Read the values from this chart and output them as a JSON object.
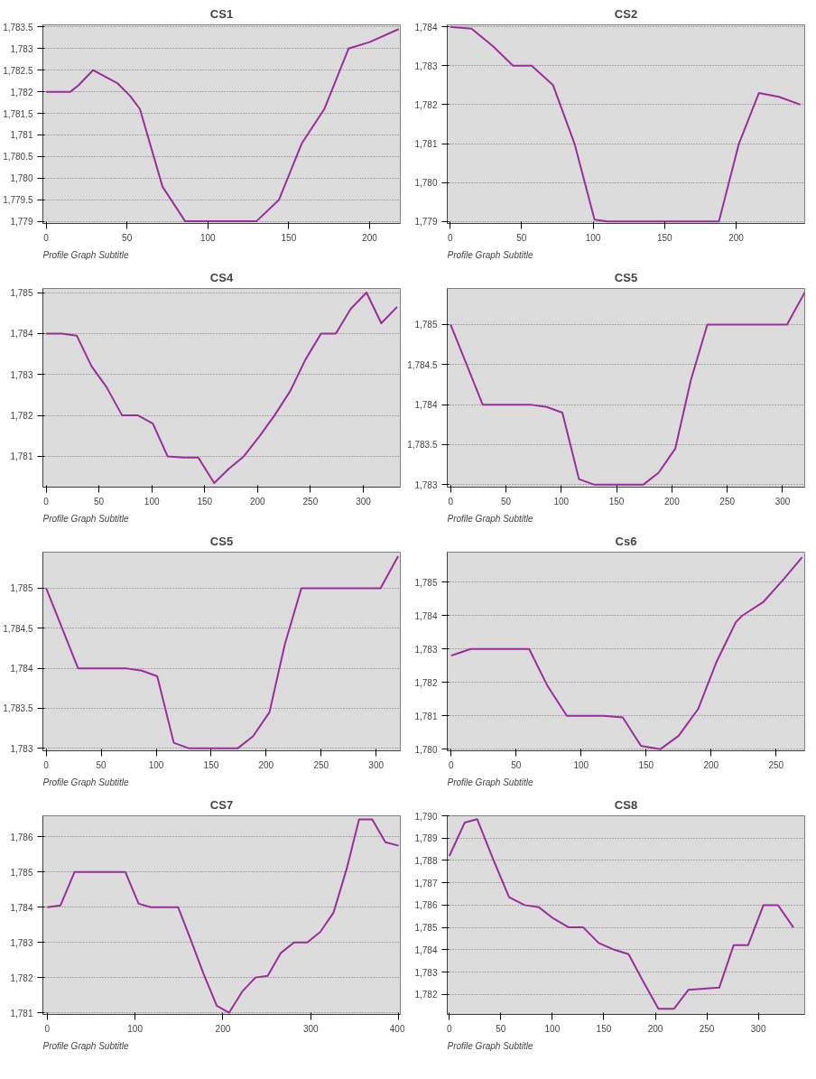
{
  "chart_data": [
    {
      "type": "line",
      "title": "CS1",
      "subtitle": "Profile Graph Subtitle",
      "grid": "y",
      "marker": "none",
      "line_style": "solid",
      "x": [
        0,
        15,
        20,
        29,
        44,
        52,
        58,
        72,
        86,
        130,
        144,
        158,
        172,
        187,
        200,
        218
      ],
      "series": [
        {
          "color": "#9a2e9a",
          "values": [
            1782,
            1782,
            1782.15,
            1782.5,
            1782.2,
            1781.9,
            1781.6,
            1779.8,
            1779,
            1779,
            1779.5,
            1780.8,
            1781.6,
            1783,
            1783.15,
            1783.45
          ]
        }
      ],
      "xlim": [
        -2,
        219
      ],
      "ylim": [
        1778.95,
        1783.55
      ],
      "xticks": [
        0,
        50,
        100,
        150,
        200
      ],
      "yticks": [
        {
          "value": 1779,
          "label": "1,779"
        },
        {
          "value": 1779.5,
          "label": "1,779.5"
        },
        {
          "value": 1780,
          "label": "1,780"
        },
        {
          "value": 1780.5,
          "label": "1,780.5"
        },
        {
          "value": 1781,
          "label": "1,781"
        },
        {
          "value": 1781.5,
          "label": "1,781.5"
        },
        {
          "value": 1782,
          "label": "1,782"
        },
        {
          "value": 1782.5,
          "label": "1,782.5"
        },
        {
          "value": 1783,
          "label": "1,783"
        },
        {
          "value": 1783.5,
          "label": "1,783.5"
        }
      ]
    },
    {
      "type": "line",
      "title": "CS2",
      "subtitle": "Profile Graph Subtitle",
      "grid": "y",
      "marker": "none",
      "line_style": "solid",
      "x": [
        0,
        15,
        30,
        44,
        57,
        72,
        87,
        101,
        110,
        188,
        202,
        216,
        230,
        245
      ],
      "series": [
        {
          "color": "#9a2e9a",
          "values": [
            1784,
            1783.95,
            1783.5,
            1783,
            1783,
            1782.5,
            1781,
            1779.05,
            1779,
            1779,
            1781,
            1782.3,
            1782.2,
            1782
          ]
        }
      ],
      "xlim": [
        -2,
        248
      ],
      "ylim": [
        1778.95,
        1784.05
      ],
      "xticks": [
        0,
        50,
        100,
        150,
        200
      ],
      "yticks": [
        {
          "value": 1779,
          "label": "1,779"
        },
        {
          "value": 1780,
          "label": "1,780"
        },
        {
          "value": 1781,
          "label": "1,781"
        },
        {
          "value": 1782,
          "label": "1,782"
        },
        {
          "value": 1783,
          "label": "1,783"
        },
        {
          "value": 1784,
          "label": "1,784"
        }
      ]
    },
    {
      "type": "line",
      "title": "CS4",
      "subtitle": "Profile Graph Subtitle",
      "grid": "y",
      "marker": "none",
      "line_style": "solid",
      "x": [
        0,
        15,
        29,
        43,
        57,
        72,
        87,
        101,
        115,
        130,
        144,
        159,
        173,
        187,
        202,
        216,
        231,
        245,
        260,
        274,
        288,
        303,
        317,
        332
      ],
      "series": [
        {
          "color": "#9a2e9a",
          "values": [
            1784,
            1784,
            1783.95,
            1783.2,
            1782.7,
            1782,
            1782,
            1781.8,
            1781,
            1780.97,
            1780.97,
            1780.35,
            1780.7,
            1781,
            1781.5,
            1782,
            1782.6,
            1783.35,
            1784,
            1784,
            1784.6,
            1785,
            1784.25,
            1784.65
          ]
        }
      ],
      "xlim": [
        -3,
        335
      ],
      "ylim": [
        1780.25,
        1785.1
      ],
      "xticks": [
        0,
        50,
        100,
        150,
        200,
        250,
        300
      ],
      "yticks": [
        {
          "value": 1781,
          "label": "1,781"
        },
        {
          "value": 1782,
          "label": "1,782"
        },
        {
          "value": 1783,
          "label": "1,783"
        },
        {
          "value": 1784,
          "label": "1,784"
        },
        {
          "value": 1785,
          "label": "1,785"
        }
      ]
    },
    {
      "type": "line",
      "title": "CS5",
      "subtitle": "Profile Graph Subtitle",
      "grid": "y",
      "marker": "none",
      "line_style": "solid",
      "x": [
        0,
        29,
        72,
        87,
        101,
        116,
        130,
        174,
        188,
        203,
        217,
        232,
        304,
        320
      ],
      "series": [
        {
          "color": "#9a2e9a",
          "values": [
            1785,
            1784,
            1784,
            1783.97,
            1783.9,
            1783.07,
            1783,
            1783,
            1783.15,
            1783.45,
            1784.3,
            1785,
            1785,
            1785.4
          ]
        }
      ],
      "xlim": [
        -3,
        320
      ],
      "ylim": [
        1782.97,
        1785.45
      ],
      "xticks": [
        0,
        50,
        100,
        150,
        200,
        250,
        300
      ],
      "yticks": [
        {
          "value": 1783,
          "label": "1,783"
        },
        {
          "value": 1783.5,
          "label": "1,783.5"
        },
        {
          "value": 1784,
          "label": "1,784"
        },
        {
          "value": 1784.5,
          "label": "1,784.5"
        },
        {
          "value": 1785,
          "label": "1,785"
        }
      ]
    },
    {
      "type": "line",
      "title": "CS5",
      "subtitle": "Profile Graph Subtitle",
      "grid": "y",
      "marker": "none",
      "line_style": "solid",
      "x": [
        0,
        29,
        72,
        87,
        101,
        116,
        130,
        174,
        188,
        203,
        217,
        232,
        304,
        320
      ],
      "series": [
        {
          "color": "#9a2e9a",
          "values": [
            1785,
            1784,
            1784,
            1783.97,
            1783.9,
            1783.07,
            1783,
            1783,
            1783.15,
            1783.45,
            1784.3,
            1785,
            1785,
            1785.4
          ]
        }
      ],
      "xlim": [
        -3,
        322
      ],
      "ylim": [
        1782.97,
        1785.45
      ],
      "xticks": [
        0,
        50,
        100,
        150,
        200,
        250,
        300
      ],
      "yticks": [
        {
          "value": 1783,
          "label": "1,783"
        },
        {
          "value": 1783.5,
          "label": "1,783.5"
        },
        {
          "value": 1784,
          "label": "1,784"
        },
        {
          "value": 1784.5,
          "label": "1,784.5"
        },
        {
          "value": 1785,
          "label": "1,785"
        }
      ]
    },
    {
      "type": "line",
      "title": "Cs6",
      "subtitle": "Profile Graph Subtitle",
      "grid": "y",
      "marker": "none",
      "line_style": "solid",
      "x": [
        0,
        15,
        60,
        74,
        89,
        117,
        132,
        146,
        161,
        175,
        190,
        204,
        219,
        224,
        240,
        256,
        270
      ],
      "series": [
        {
          "color": "#9a2e9a",
          "values": [
            1782.8,
            1783,
            1783,
            1781.9,
            1781,
            1781,
            1780.95,
            1780.1,
            1780,
            1780.4,
            1781.2,
            1782.6,
            1783.8,
            1784,
            1784.4,
            1785.1,
            1785.75
          ]
        }
      ],
      "xlim": [
        -3,
        272
      ],
      "ylim": [
        1779.95,
        1785.9
      ],
      "xticks": [
        0,
        50,
        100,
        150,
        200,
        250
      ],
      "yticks": [
        {
          "value": 1780,
          "label": "1,780"
        },
        {
          "value": 1781,
          "label": "1,781"
        },
        {
          "value": 1782,
          "label": "1,782"
        },
        {
          "value": 1783,
          "label": "1,783"
        },
        {
          "value": 1784,
          "label": "1,784"
        },
        {
          "value": 1785,
          "label": "1,785"
        }
      ]
    },
    {
      "type": "line",
      "title": "CS7",
      "subtitle": "Profile Graph Subtitle",
      "grid": "y",
      "marker": "none",
      "line_style": "solid",
      "x": [
        0,
        15,
        31,
        89,
        104,
        118,
        149,
        163,
        178,
        193,
        207,
        222,
        237,
        251,
        266,
        281,
        296,
        311,
        326,
        341,
        355,
        370,
        385,
        400
      ],
      "series": [
        {
          "color": "#9a2e9a",
          "values": [
            1784,
            1784.05,
            1785,
            1785,
            1784.1,
            1784,
            1784,
            1783.1,
            1782.1,
            1781.2,
            1781,
            1781.6,
            1782,
            1782.05,
            1782.7,
            1783,
            1783,
            1783.3,
            1783.85,
            1785.1,
            1786.5,
            1786.5,
            1785.85,
            1785.75
          ]
        }
      ],
      "xlim": [
        -5,
        402
      ],
      "ylim": [
        1780.95,
        1786.6
      ],
      "xticks": [
        0,
        100,
        200,
        300,
        400
      ],
      "yticks": [
        {
          "value": 1781,
          "label": "1,781"
        },
        {
          "value": 1782,
          "label": "1,782"
        },
        {
          "value": 1783,
          "label": "1,783"
        },
        {
          "value": 1784,
          "label": "1,784"
        },
        {
          "value": 1785,
          "label": "1,785"
        },
        {
          "value": 1786,
          "label": "1,786"
        }
      ]
    },
    {
      "type": "line",
      "title": "CS8",
      "subtitle": "Profile Graph Subtitle",
      "grid": "y",
      "marker": "none",
      "line_style": "solid",
      "x": [
        0,
        15,
        27,
        43,
        58,
        73,
        87,
        101,
        116,
        130,
        145,
        160,
        174,
        188,
        203,
        218,
        232,
        262,
        276,
        290,
        305,
        319,
        334
      ],
      "series": [
        {
          "color": "#9a2e9a",
          "values": [
            1788.2,
            1789.7,
            1789.85,
            1788,
            1786.35,
            1786,
            1785.9,
            1785.4,
            1785,
            1785,
            1784.3,
            1784,
            1783.8,
            1782.6,
            1781.35,
            1781.35,
            1782.2,
            1782.3,
            1784.2,
            1784.2,
            1786,
            1786,
            1785
          ]
        }
      ],
      "xlim": [
        -2,
        345
      ],
      "ylim": [
        1781.1,
        1790
      ],
      "xticks": [
        0,
        50,
        100,
        150,
        200,
        250,
        300
      ],
      "yticks": [
        {
          "value": 1782,
          "label": "1,782"
        },
        {
          "value": 1783,
          "label": "1,783"
        },
        {
          "value": 1784,
          "label": "1,784"
        },
        {
          "value": 1785,
          "label": "1,785"
        },
        {
          "value": 1786,
          "label": "1,786"
        },
        {
          "value": 1787,
          "label": "1,787"
        },
        {
          "value": 1788,
          "label": "1,788"
        },
        {
          "value": 1789,
          "label": "1,789"
        },
        {
          "value": 1790,
          "label": "1,790"
        }
      ]
    }
  ]
}
